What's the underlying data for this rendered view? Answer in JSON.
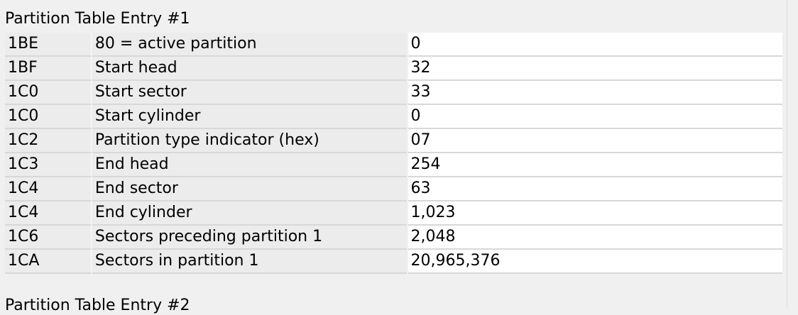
{
  "sections": [
    {
      "title": "Partition Table Entry #1",
      "rows": [
        {
          "offset": "1BE",
          "description": "80 = active partition",
          "value": "0"
        },
        {
          "offset": "1BF",
          "description": "Start head",
          "value": "32"
        },
        {
          "offset": "1C0",
          "description": "Start sector",
          "value": "33"
        },
        {
          "offset": "1C0",
          "description": "Start cylinder",
          "value": "0"
        },
        {
          "offset": "1C2",
          "description": "Partition type indicator (hex)",
          "value": "07"
        },
        {
          "offset": "1C3",
          "description": "End head",
          "value": "254"
        },
        {
          "offset": "1C4",
          "description": "End sector",
          "value": "63"
        },
        {
          "offset": "1C4",
          "description": "End cylinder",
          "value": "1,023"
        },
        {
          "offset": "1C6",
          "description": "Sectors preceding partition 1",
          "value": "2,048"
        },
        {
          "offset": "1CA",
          "description": "Sectors in partition 1",
          "value": "20,965,376"
        }
      ]
    },
    {
      "title": "Partition Table Entry #2"
    }
  ]
}
